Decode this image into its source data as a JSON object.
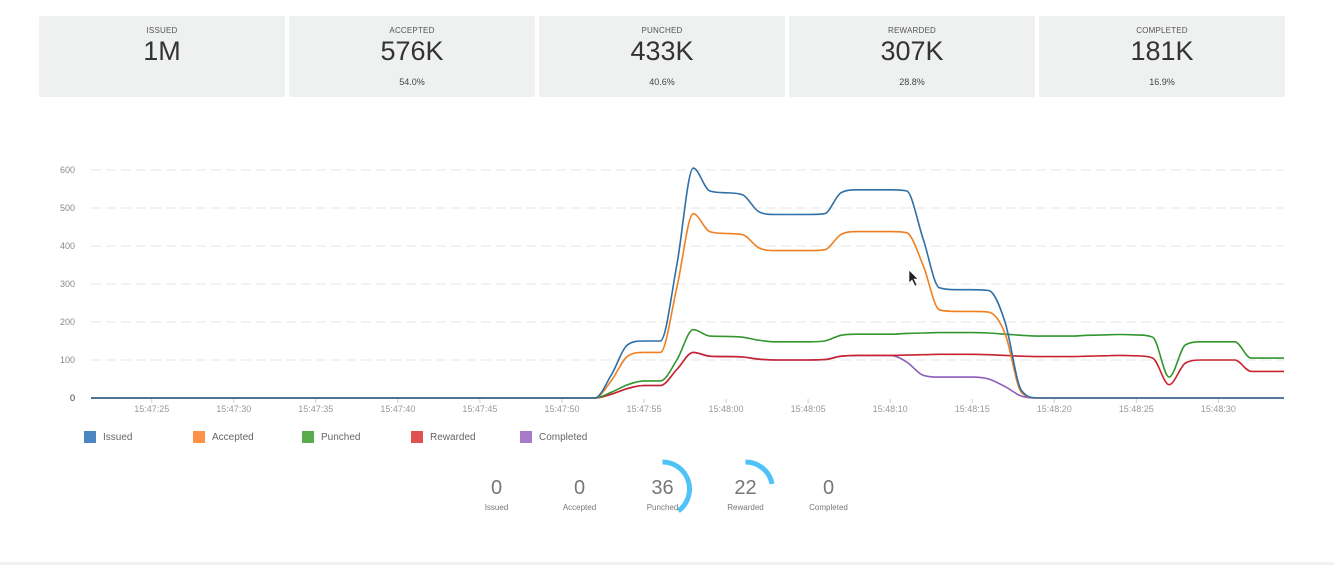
{
  "summary_cards": [
    {
      "label": "ISSUED",
      "value": "1M",
      "percent": ""
    },
    {
      "label": "ACCEPTED",
      "value": "576K",
      "percent": "54.0%"
    },
    {
      "label": "PUNCHED",
      "value": "433K",
      "percent": "40.6%"
    },
    {
      "label": "REWARDED",
      "value": "307K",
      "percent": "28.8%"
    },
    {
      "label": "COMPLETED",
      "value": "181K",
      "percent": "16.9%"
    }
  ],
  "gauges": [
    {
      "label": "Issued",
      "value": "0",
      "fraction": 0
    },
    {
      "label": "Accepted",
      "value": "0",
      "fraction": 0
    },
    {
      "label": "Punched",
      "value": "36",
      "fraction": 0.4
    },
    {
      "label": "Rewarded",
      "value": "22",
      "fraction": 0.22
    },
    {
      "label": "Completed",
      "value": "0",
      "fraction": 0
    }
  ],
  "gauge_color": "#4fc3f7",
  "chart_data": {
    "type": "line",
    "title": "",
    "xlabel": "",
    "ylabel": "",
    "ylim": [
      0,
      600
    ],
    "yticks": [
      "0",
      "100",
      "200",
      "300",
      "400",
      "500",
      "600"
    ],
    "x_start_seconds": -3.7,
    "x_end_seconds": 69,
    "xtick_seconds": [
      0,
      5,
      10,
      15,
      20,
      25,
      30,
      35,
      40,
      45,
      50,
      55,
      60,
      65
    ],
    "xtick_labels": [
      "15:47:25",
      "15:47:30",
      "15:47:35",
      "15:47:40",
      "15:47:45",
      "15:47:50",
      "15:47:55",
      "15:48:00",
      "15:48:05",
      "15:48:10",
      "15:48:15",
      "15:48:20",
      "15:48:25",
      "15:48:30"
    ],
    "grid": true,
    "legend_position": "bottom-left",
    "x_seconds": [
      -3.7,
      26,
      27,
      28,
      29,
      30,
      31,
      32,
      33,
      34,
      35,
      36,
      37,
      38,
      39,
      40,
      41,
      42,
      43,
      44,
      45,
      46,
      47,
      48,
      49,
      50,
      51,
      52,
      53,
      54,
      55,
      56,
      57,
      58,
      59,
      60,
      61,
      62,
      63,
      64,
      65,
      66,
      67,
      68,
      69
    ],
    "series": [
      {
        "name": "Issued",
        "color": "#2e6fa7",
        "values": [
          0,
          0,
          0,
          60,
          140,
          150,
          150,
          350,
          605,
          545,
          540,
          535,
          490,
          483,
          483,
          483,
          485,
          540,
          548,
          548,
          548,
          545,
          420,
          290,
          285,
          285,
          283,
          200,
          20,
          0,
          0,
          0,
          0,
          0,
          0,
          0,
          0,
          0,
          0,
          0,
          0,
          0,
          0,
          0,
          0
        ]
      },
      {
        "name": "Accepted",
        "color": "#f07f1f",
        "values": [
          0,
          0,
          0,
          45,
          110,
          120,
          120,
          290,
          485,
          438,
          433,
          430,
          395,
          388,
          388,
          388,
          390,
          430,
          438,
          438,
          438,
          435,
          350,
          232,
          228,
          228,
          226,
          170,
          15,
          0,
          0,
          0,
          0,
          0,
          0,
          0,
          0,
          0,
          0,
          0,
          0,
          0,
          0,
          0,
          0
        ]
      },
      {
        "name": "Punched",
        "color": "#32962e",
        "values": [
          0,
          0,
          0,
          15,
          35,
          45,
          45,
          100,
          180,
          163,
          162,
          160,
          152,
          148,
          148,
          148,
          150,
          165,
          168,
          168,
          168,
          170,
          171,
          172,
          172,
          172,
          171,
          168,
          165,
          163,
          163,
          163,
          165,
          166,
          167,
          166,
          160,
          55,
          140,
          148,
          148,
          148,
          105,
          105,
          105
        ]
      },
      {
        "name": "Rewarded",
        "color": "#c8232e",
        "values": [
          0,
          0,
          0,
          10,
          25,
          33,
          33,
          75,
          120,
          110,
          109,
          108,
          102,
          100,
          100,
          100,
          101,
          110,
          112,
          112,
          112,
          113,
          114,
          115,
          115,
          115,
          114,
          112,
          110,
          109,
          109,
          109,
          110,
          111,
          112,
          111,
          105,
          35,
          92,
          100,
          100,
          100,
          70,
          70,
          70
        ]
      },
      {
        "name": "Completed",
        "color": "#8e5cb8",
        "values": [
          0,
          0,
          0,
          10,
          25,
          33,
          33,
          75,
          120,
          110,
          109,
          108,
          102,
          100,
          100,
          100,
          101,
          110,
          112,
          112,
          112,
          95,
          60,
          55,
          55,
          55,
          50,
          30,
          5,
          0,
          0,
          0,
          0,
          0,
          0,
          0,
          0,
          0,
          0,
          0,
          0,
          0,
          0,
          0,
          0
        ]
      }
    ]
  }
}
